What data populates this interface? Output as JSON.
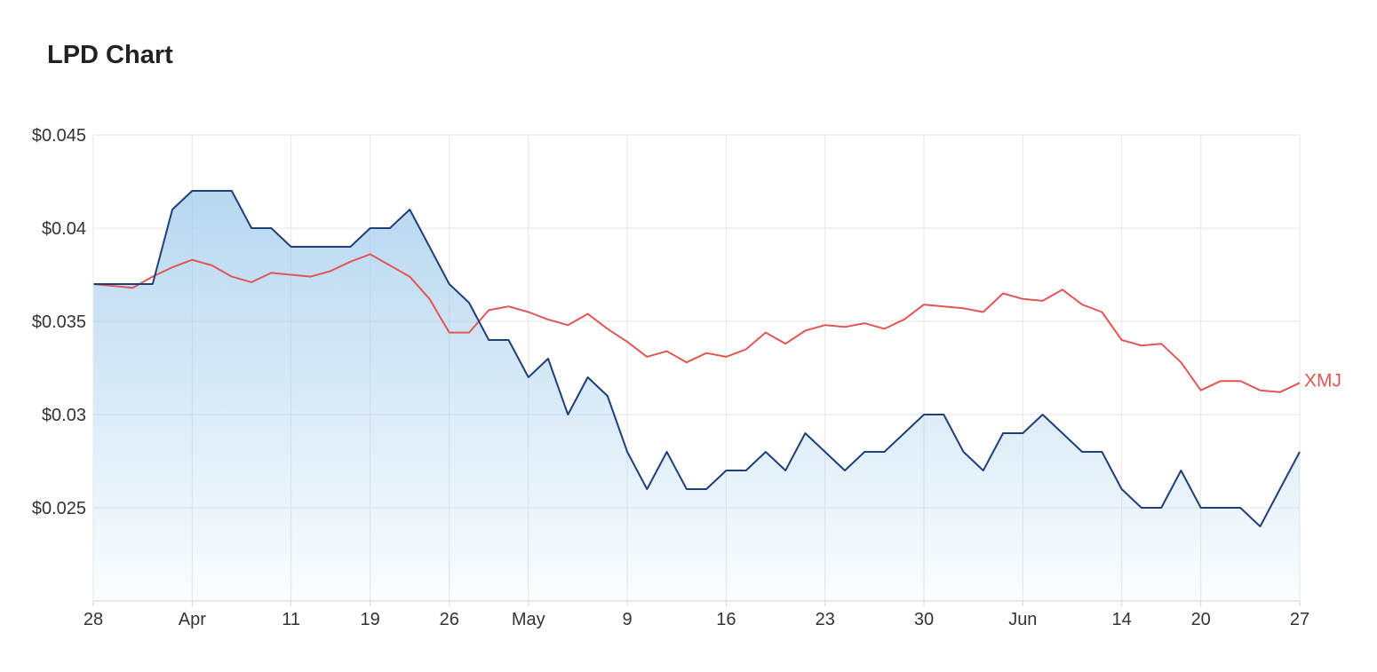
{
  "title": "LPD Chart",
  "chart_data": {
    "type": "area",
    "title": "LPD Chart",
    "xlabel": "",
    "ylabel": "",
    "ylim": [
      0.02,
      0.045
    ],
    "y_ticks": [
      "$0.045",
      "$0.04",
      "$0.035",
      "$0.03",
      "$0.025"
    ],
    "y_tick_values": [
      0.045,
      0.04,
      0.035,
      0.03,
      0.025
    ],
    "x_ticks": [
      "28",
      "Apr",
      "11",
      "19",
      "26",
      "May",
      "9",
      "16",
      "23",
      "30",
      "Jun",
      "14",
      "20",
      "27"
    ],
    "x_tick_index": [
      0,
      5,
      10,
      14,
      18,
      22,
      27,
      32,
      37,
      42,
      47,
      52,
      56,
      61
    ],
    "n_points": 62,
    "grid": true,
    "series": [
      {
        "name": "",
        "color": "#1f3f7a",
        "fill_color": "#9ecaeb",
        "values": [
          0.037,
          0.037,
          0.037,
          0.037,
          0.041,
          0.042,
          0.042,
          0.042,
          0.04,
          0.04,
          0.039,
          0.039,
          0.039,
          0.039,
          0.04,
          0.04,
          0.041,
          0.039,
          0.037,
          0.036,
          0.034,
          0.034,
          0.032,
          0.033,
          0.03,
          0.032,
          0.031,
          0.028,
          0.026,
          0.028,
          0.026,
          0.026,
          0.027,
          0.027,
          0.028,
          0.027,
          0.029,
          0.028,
          0.027,
          0.028,
          0.028,
          0.029,
          0.03,
          0.03,
          0.028,
          0.027,
          0.029,
          0.029,
          0.03,
          0.029,
          0.028,
          0.028,
          0.026,
          0.025,
          0.025,
          0.027,
          0.025,
          0.025,
          0.025,
          0.024,
          0.026,
          0.028
        ]
      },
      {
        "name": "XMJ",
        "color": "#e05656",
        "values": [
          0.037,
          0.0369,
          0.0368,
          0.0374,
          0.0379,
          0.0383,
          0.038,
          0.0374,
          0.0371,
          0.0376,
          0.0375,
          0.0374,
          0.0377,
          0.0382,
          0.0386,
          0.038,
          0.0374,
          0.0362,
          0.0344,
          0.0344,
          0.0356,
          0.0358,
          0.0355,
          0.0351,
          0.0348,
          0.0354,
          0.0346,
          0.0339,
          0.0331,
          0.0334,
          0.0328,
          0.0333,
          0.0331,
          0.0335,
          0.0344,
          0.0338,
          0.0345,
          0.0348,
          0.0347,
          0.0349,
          0.0346,
          0.0351,
          0.0359,
          0.0358,
          0.0357,
          0.0355,
          0.0365,
          0.0362,
          0.0361,
          0.0367,
          0.0359,
          0.0355,
          0.034,
          0.0337,
          0.0338,
          0.0328,
          0.0313,
          0.0318,
          0.0318,
          0.0313,
          0.0312,
          0.0317
        ]
      }
    ]
  }
}
